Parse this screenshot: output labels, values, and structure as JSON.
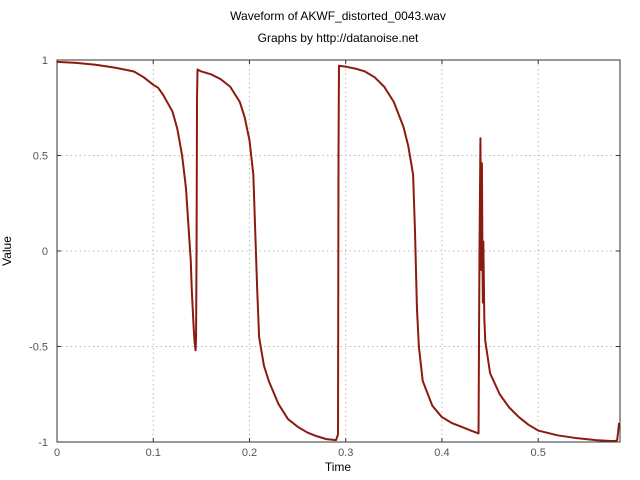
{
  "chart_data": {
    "type": "line",
    "title": "Waveform of AKWF_distorted_0043.wav",
    "subtitle": "Graphs by http://datanoise.net",
    "xlabel": "Time",
    "ylabel": "Value",
    "xlim": [
      0,
      0.585
    ],
    "ylim": [
      -1,
      1
    ],
    "xticks": [
      0,
      0.1,
      0.2,
      0.3,
      0.4,
      0.5
    ],
    "xtick_labels": [
      "0",
      "0.1",
      "0.2",
      "0.3",
      "0.4",
      "0.5"
    ],
    "yticks": [
      1,
      0.5,
      0,
      -0.5,
      -1
    ],
    "ytick_labels": [
      "1",
      "0.5",
      "0",
      "-0.5",
      "-1"
    ],
    "grid": true,
    "line_color": "#8b1a10",
    "series": [
      {
        "x": [
          0,
          0.02,
          0.04,
          0.06,
          0.08,
          0.09,
          0.1,
          0.105,
          0.11,
          0.12,
          0.125,
          0.13,
          0.134,
          0.137,
          0.139,
          0.14,
          0.141,
          0.142,
          0.143,
          0.144,
          0.1445,
          0.145,
          0.1455,
          0.146,
          0.15,
          0.16,
          0.17,
          0.18,
          0.19,
          0.195,
          0.2,
          0.204,
          0.206,
          0.208,
          0.21,
          0.215,
          0.22,
          0.23,
          0.24,
          0.25,
          0.26,
          0.27,
          0.28,
          0.29,
          0.292,
          0.2925,
          0.293,
          0.3,
          0.31,
          0.32,
          0.33,
          0.34,
          0.35,
          0.36,
          0.365,
          0.37,
          0.372,
          0.374,
          0.376,
          0.38,
          0.39,
          0.4,
          0.41,
          0.42,
          0.43,
          0.438,
          0.439,
          0.44,
          0.4405,
          0.441,
          0.4415,
          0.442,
          0.4425,
          0.443,
          0.444,
          0.445,
          0.45,
          0.46,
          0.47,
          0.48,
          0.49,
          0.5,
          0.52,
          0.54,
          0.56,
          0.575,
          0.58,
          0.582,
          0.583,
          0.584
        ],
        "y": [
          0.99,
          0.985,
          0.975,
          0.96,
          0.94,
          0.91,
          0.87,
          0.855,
          0.82,
          0.73,
          0.64,
          0.5,
          0.33,
          0.1,
          -0.05,
          -0.2,
          -0.3,
          -0.4,
          -0.48,
          -0.52,
          -0.45,
          0.0,
          0.8,
          0.95,
          0.94,
          0.925,
          0.9,
          0.86,
          0.78,
          0.7,
          0.58,
          0.4,
          0.1,
          -0.2,
          -0.45,
          -0.6,
          -0.68,
          -0.8,
          -0.88,
          -0.92,
          -0.95,
          -0.97,
          -0.985,
          -0.99,
          -0.96,
          0.5,
          0.97,
          0.965,
          0.955,
          0.94,
          0.91,
          0.86,
          0.78,
          0.65,
          0.55,
          0.4,
          0.1,
          -0.3,
          -0.5,
          -0.68,
          -0.81,
          -0.87,
          -0.9,
          -0.92,
          -0.94,
          -0.955,
          0.0,
          0.59,
          0.0,
          -0.1,
          0.46,
          0.05,
          -0.27,
          0.05,
          -0.35,
          -0.47,
          -0.64,
          -0.75,
          -0.82,
          -0.87,
          -0.91,
          -0.94,
          -0.965,
          -0.98,
          -0.99,
          -0.995,
          -0.995,
          -0.99,
          -0.95,
          -0.9
        ]
      }
    ]
  }
}
